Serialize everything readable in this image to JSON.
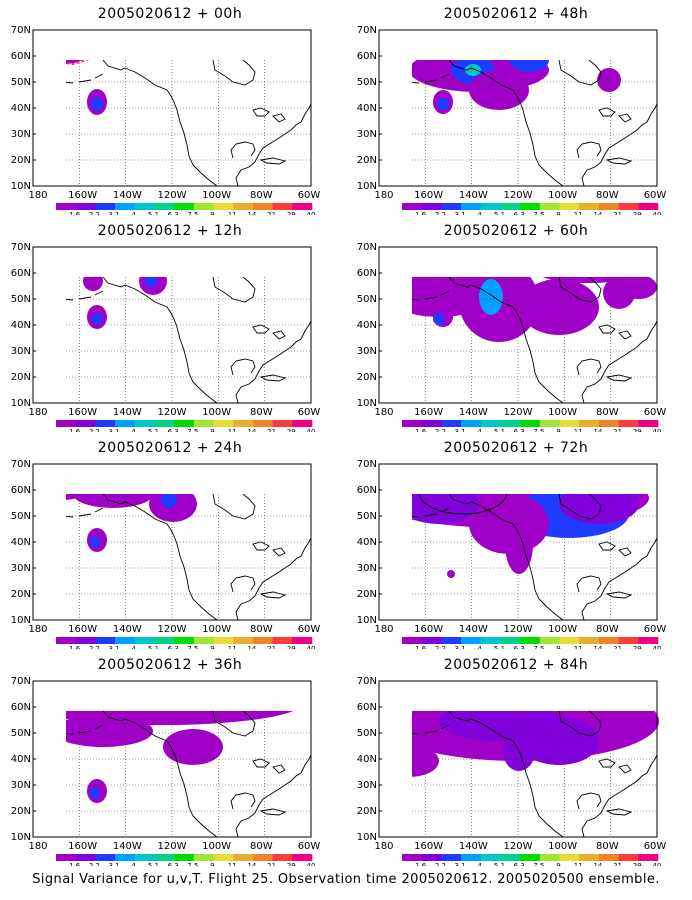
{
  "panels": [
    {
      "title": "2005020612 + 00h",
      "region_marker": true
    },
    {
      "title": "2005020612 + 48h"
    },
    {
      "title": "2005020612 + 12h"
    },
    {
      "title": "2005020612 + 60h"
    },
    {
      "title": "2005020612 + 24h"
    },
    {
      "title": "2005020612 + 72h",
      "ellipse": true
    },
    {
      "title": "2005020612 + 36h"
    },
    {
      "title": "2005020612 + 84h"
    }
  ],
  "lat_labels": [
    "70N",
    "60N",
    "50N",
    "40N",
    "30N",
    "20N",
    "10N"
  ],
  "lon_labels": [
    "180",
    "160W",
    "140W",
    "120W",
    "100W",
    "80W",
    "60W"
  ],
  "colorbar": {
    "labels": [
      "1.6",
      "2.2",
      "3.1",
      "4",
      "5.1",
      "6.3",
      "7.5",
      "9",
      "11",
      "14",
      "21",
      "29",
      "40"
    ],
    "colors": [
      "#a000c8",
      "#8200dc",
      "#1e3cff",
      "#00a0ff",
      "#00c8c8",
      "#00d28c",
      "#00dc00",
      "#a0e632",
      "#e6dc32",
      "#e6af2d",
      "#f08228",
      "#fa3c3c",
      "#f00082"
    ]
  },
  "fill_colors": {
    "base": "#a000c8",
    "mid": "#8200dc",
    "blue": "#1e3cff",
    "lightblue": "#00a0ff",
    "cyan": "#00c8c8",
    "green": "#00d28c"
  },
  "caption": "Signal Variance for u,v,T. Flight 25. Observation time 2005020612. 2005020500 ensemble."
}
